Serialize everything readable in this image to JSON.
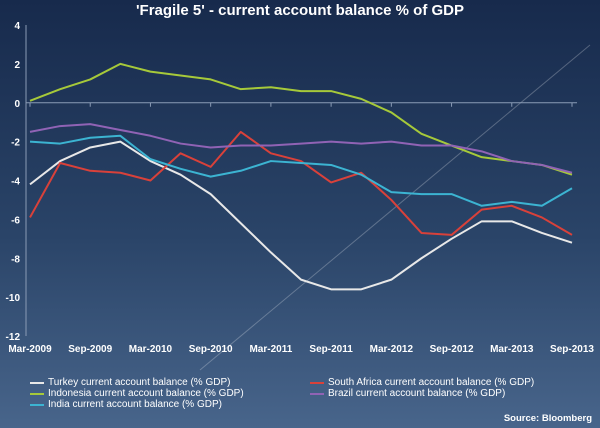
{
  "chart_data": {
    "type": "line",
    "title": "'Fragile 5' - current account balance % of GDP",
    "x": [
      "Mar-2009",
      "Jun-2009",
      "Sep-2009",
      "Dec-2009",
      "Mar-2010",
      "Jun-2010",
      "Sep-2010",
      "Dec-2010",
      "Mar-2011",
      "Jun-2011",
      "Sep-2011",
      "Dec-2011",
      "Mar-2012",
      "Jun-2012",
      "Sep-2012",
      "Dec-2012",
      "Mar-2013",
      "Jun-2013",
      "Sep-2013"
    ],
    "xticks": [
      "Mar-2009",
      "Sep-2009",
      "Mar-2010",
      "Sep-2010",
      "Mar-2011",
      "Sep-2011",
      "Mar-2012",
      "Sep-2012",
      "Mar-2013",
      "Sep-2013"
    ],
    "ylim": [
      -12,
      4
    ],
    "yticks": [
      4,
      2,
      0,
      -2,
      -4,
      -6,
      -8,
      -10,
      -12
    ],
    "grid": false,
    "legend_placement": "bottom",
    "series": [
      {
        "name": "Turkey current account balance (% GDP)",
        "color": "#e8e8e8",
        "values": [
          -4.2,
          -3.0,
          -2.3,
          -2.0,
          -3.0,
          -3.7,
          -4.7,
          -6.2,
          -7.7,
          -9.1,
          -9.6,
          -9.6,
          -9.1,
          -8.0,
          -7.0,
          -6.1,
          -6.1,
          -6.7,
          -7.2
        ]
      },
      {
        "name": "South Africa current account balance (% GDP)",
        "color": "#d9413a",
        "values": [
          -5.9,
          -3.1,
          -3.5,
          -3.6,
          -4.0,
          -2.6,
          -3.3,
          -1.5,
          -2.6,
          -3.0,
          -4.1,
          -3.6,
          -5.0,
          -6.7,
          -6.8,
          -5.5,
          -5.3,
          -5.9,
          -6.8
        ]
      },
      {
        "name": "Indonesia current account balance (% GDP)",
        "color": "#a6c93a",
        "values": [
          0.1,
          0.7,
          1.2,
          2.0,
          1.6,
          1.4,
          1.2,
          0.7,
          0.8,
          0.6,
          0.6,
          0.2,
          -0.5,
          -1.6,
          -2.2,
          -2.8,
          -3.0,
          -3.2,
          -3.7
        ]
      },
      {
        "name": "Brazil current account balance (% GDP)",
        "color": "#9063b5",
        "values": [
          -1.5,
          -1.2,
          -1.1,
          -1.4,
          -1.7,
          -2.1,
          -2.3,
          -2.2,
          -2.2,
          -2.1,
          -2.0,
          -2.1,
          -2.0,
          -2.2,
          -2.2,
          -2.5,
          -3.0,
          -3.2,
          -3.6
        ]
      },
      {
        "name": "India current account balance (% GDP)",
        "color": "#3cb4d2",
        "values": [
          -2.0,
          -2.1,
          -1.8,
          -1.7,
          -2.9,
          -3.4,
          -3.8,
          -3.5,
          -3.0,
          -3.1,
          -3.2,
          -3.7,
          -4.6,
          -4.7,
          -4.7,
          -5.3,
          -5.1,
          -5.3,
          -4.4
        ]
      }
    ],
    "source": "Source: Bloomberg"
  }
}
